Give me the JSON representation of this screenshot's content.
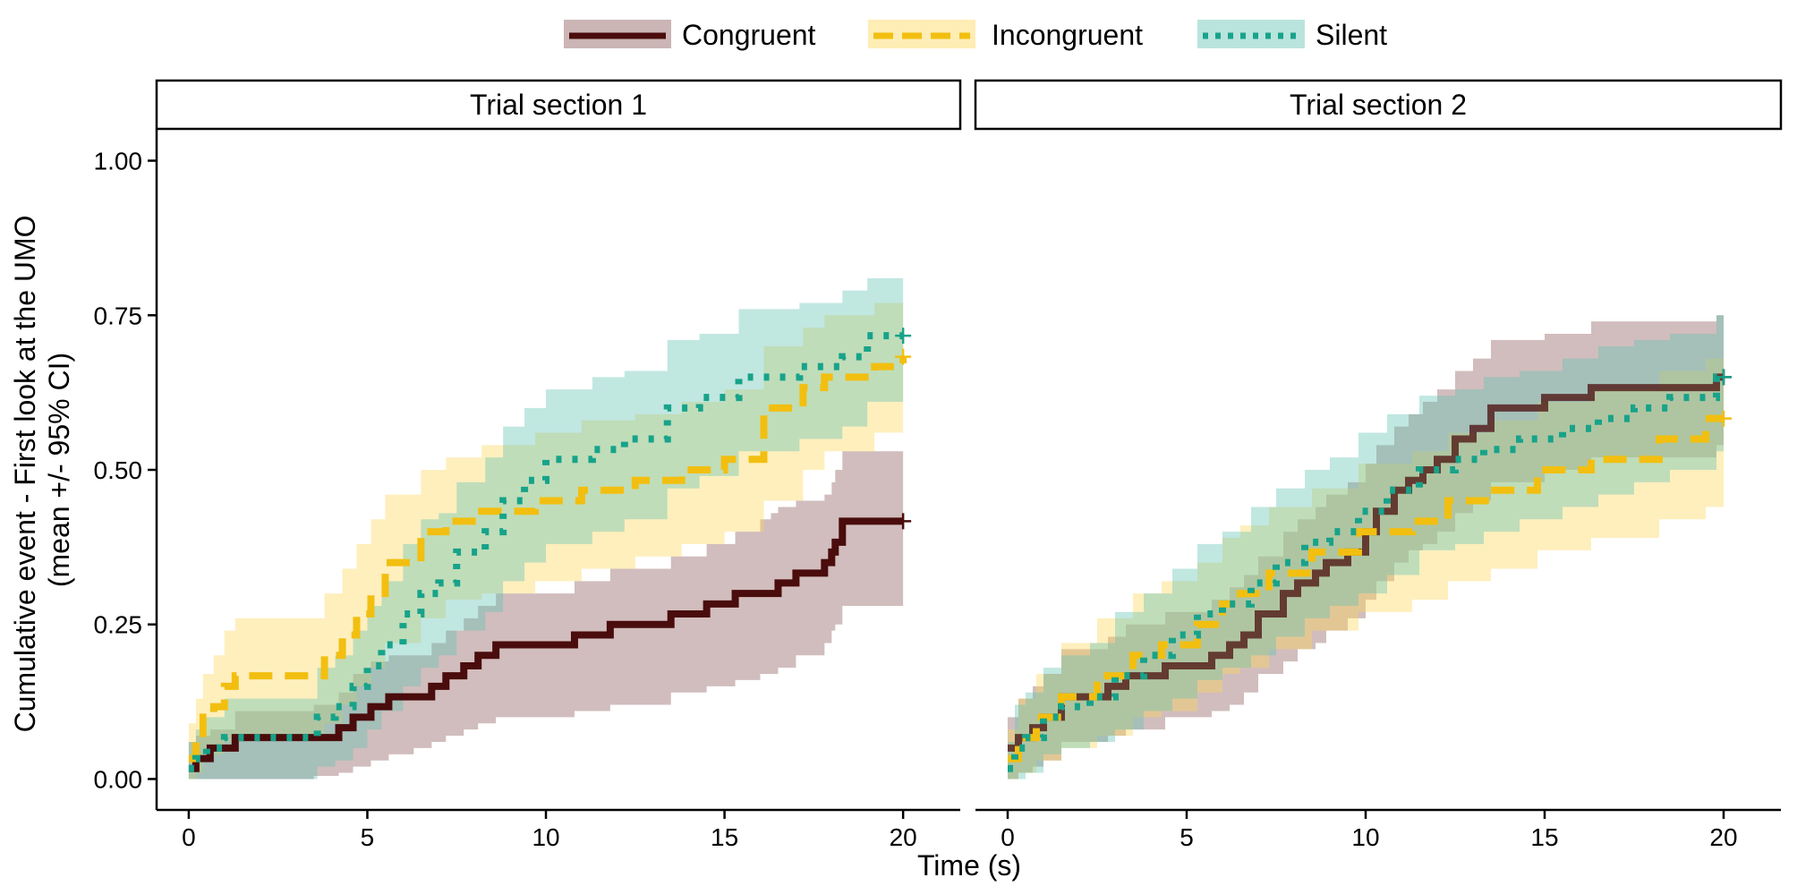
{
  "chart_data": {
    "type": "line",
    "step": true,
    "xlabel": "Time (s)",
    "ylabel_lines": [
      "Cumulative event - First look at the UMO",
      "(mean +/- 95% CI)"
    ],
    "xlim": [
      -0.9,
      21.6
    ],
    "ylim": [
      -0.05,
      1.05
    ],
    "xticks": [
      0,
      5,
      10,
      15,
      20
    ],
    "xtick_labels": [
      "0",
      "5",
      "10",
      "15",
      "20"
    ],
    "yticks": [
      0,
      0.25,
      0.5,
      0.75,
      1.0
    ],
    "ytick_labels": [
      "0.00",
      "0.25",
      "0.50",
      "0.75",
      "1.00"
    ],
    "grid": false,
    "legend_position": "top",
    "legend": [
      {
        "name": "Congruent",
        "color": "#4a0c0c",
        "fill": "#8b5a5a",
        "dash": "solid"
      },
      {
        "name": "Incongruent",
        "color": "#f2bf10",
        "fill": "#fcd65a",
        "dash": "dashed"
      },
      {
        "name": "Silent",
        "color": "#17a38a",
        "fill": "#63c4b4",
        "dash": "dotted"
      }
    ],
    "panels": [
      {
        "title": "Trial section 1",
        "series": [
          {
            "name": "Congruent",
            "x": [
              0,
              0.2,
              0.6,
              1.3,
              2.5,
              3.5,
              4.2,
              4.6,
              5.1,
              5.6,
              6.3,
              6.8,
              7.2,
              7.7,
              8.1,
              8.6,
              9.2,
              10.8,
              11.8,
              13.5,
              14.5,
              15.3,
              16.0,
              16.3,
              16.5,
              17.0,
              17.8,
              18.0,
              18.1,
              18.3,
              20.0
            ],
            "y": [
              0.017,
              0.033,
              0.05,
              0.067,
              0.067,
              0.067,
              0.083,
              0.1,
              0.117,
              0.133,
              0.133,
              0.15,
              0.167,
              0.183,
              0.2,
              0.217,
              0.217,
              0.233,
              0.25,
              0.267,
              0.283,
              0.3,
              0.3,
              0.3,
              0.317,
              0.333,
              0.35,
              0.367,
              0.383,
              0.417,
              0.417
            ],
            "lower": [
              0,
              0,
              0,
              0,
              0,
              0.005,
              0.01,
              0.02,
              0.03,
              0.04,
              0.05,
              0.06,
              0.07,
              0.08,
              0.09,
              0.1,
              0.1,
              0.11,
              0.12,
              0.14,
              0.15,
              0.16,
              0.17,
              0.17,
              0.18,
              0.2,
              0.22,
              0.24,
              0.25,
              0.28,
              0.28
            ],
            "upper": [
              0.06,
              0.07,
              0.08,
              0.11,
              0.11,
              0.12,
              0.14,
              0.17,
              0.19,
              0.2,
              0.2,
              0.22,
              0.24,
              0.26,
              0.28,
              0.3,
              0.3,
              0.32,
              0.34,
              0.36,
              0.38,
              0.4,
              0.42,
              0.43,
              0.44,
              0.45,
              0.46,
              0.48,
              0.5,
              0.53,
              0.53
            ]
          },
          {
            "name": "Incongruent",
            "x": [
              0,
              0.2,
              0.4,
              0.7,
              1.0,
              1.3,
              2.0,
              3.8,
              4.3,
              4.7,
              5.1,
              5.5,
              6.5,
              7.2,
              8.2,
              9.7,
              11.0,
              12.5,
              13.8,
              15.0,
              16.1,
              17.2,
              17.8,
              19.2,
              20.0
            ],
            "y": [
              0.033,
              0.067,
              0.1,
              0.117,
              0.15,
              0.167,
              0.167,
              0.2,
              0.233,
              0.267,
              0.3,
              0.35,
              0.4,
              0.417,
              0.433,
              0.45,
              0.467,
              0.483,
              0.5,
              0.517,
              0.6,
              0.633,
              0.65,
              0.667,
              0.683
            ],
            "lower": [
              0,
              0.01,
              0.03,
              0.04,
              0.06,
              0.07,
              0.07,
              0.09,
              0.12,
              0.15,
              0.18,
              0.22,
              0.26,
              0.29,
              0.3,
              0.32,
              0.34,
              0.36,
              0.38,
              0.4,
              0.45,
              0.5,
              0.53,
              0.56,
              0.58
            ],
            "upper": [
              0.09,
              0.13,
              0.17,
              0.2,
              0.24,
              0.26,
              0.26,
              0.3,
              0.34,
              0.38,
              0.42,
              0.46,
              0.5,
              0.52,
              0.54,
              0.56,
              0.58,
              0.59,
              0.61,
              0.63,
              0.7,
              0.73,
              0.75,
              0.77,
              0.78
            ]
          },
          {
            "name": "Silent",
            "x": [
              0,
              0.2,
              0.5,
              1.0,
              1.5,
              3.0,
              3.6,
              4.1,
              4.6,
              5.0,
              5.4,
              6.0,
              6.5,
              7.0,
              7.5,
              8.3,
              8.8,
              9.4,
              10.0,
              11.3,
              12.2,
              13.4,
              14.3,
              15.4,
              16.1,
              17.1,
              18.3,
              19.0,
              20.0
            ],
            "y": [
              0.017,
              0.033,
              0.05,
              0.067,
              0.067,
              0.067,
              0.1,
              0.117,
              0.15,
              0.183,
              0.217,
              0.267,
              0.3,
              0.317,
              0.367,
              0.4,
              0.45,
              0.483,
              0.517,
              0.533,
              0.55,
              0.6,
              0.617,
              0.65,
              0.65,
              0.667,
              0.683,
              0.717,
              0.717
            ],
            "lower": [
              0,
              0,
              0,
              0,
              0,
              0,
              0.02,
              0.03,
              0.05,
              0.08,
              0.11,
              0.15,
              0.18,
              0.2,
              0.24,
              0.27,
              0.32,
              0.35,
              0.38,
              0.4,
              0.42,
              0.47,
              0.49,
              0.53,
              0.53,
              0.55,
              0.57,
              0.61,
              0.61
            ],
            "upper": [
              0.06,
              0.08,
              0.1,
              0.13,
              0.13,
              0.13,
              0.18,
              0.2,
              0.24,
              0.28,
              0.32,
              0.38,
              0.42,
              0.43,
              0.48,
              0.52,
              0.57,
              0.6,
              0.63,
              0.65,
              0.66,
              0.71,
              0.72,
              0.76,
              0.76,
              0.77,
              0.79,
              0.81,
              0.81
            ]
          }
        ]
      },
      {
        "title": "Trial section 2",
        "series": [
          {
            "name": "Congruent",
            "x": [
              0,
              0.3,
              0.7,
              1.0,
              1.5,
              2.8,
              3.3,
              3.8,
              4.4,
              5.7,
              6.2,
              6.6,
              7.0,
              7.7,
              8.1,
              8.6,
              8.9,
              9.2,
              9.5,
              9.8,
              10.0,
              10.3,
              10.8,
              11.2,
              11.6,
              12.0,
              12.5,
              13.0,
              13.5,
              14.0,
              15.0,
              16.3,
              18.3,
              19.8,
              20.0
            ],
            "y": [
              0.05,
              0.067,
              0.083,
              0.1,
              0.133,
              0.15,
              0.167,
              0.167,
              0.183,
              0.2,
              0.217,
              0.233,
              0.267,
              0.3,
              0.317,
              0.333,
              0.35,
              0.35,
              0.367,
              0.367,
              0.4,
              0.433,
              0.467,
              0.483,
              0.5,
              0.517,
              0.55,
              0.567,
              0.6,
              0.6,
              0.617,
              0.633,
              0.633,
              0.65,
              0.65
            ],
            "lower": [
              0,
              0.01,
              0.02,
              0.03,
              0.06,
              0.07,
              0.08,
              0.08,
              0.1,
              0.11,
              0.12,
              0.14,
              0.17,
              0.19,
              0.21,
              0.22,
              0.24,
              0.24,
              0.26,
              0.26,
              0.29,
              0.32,
              0.35,
              0.37,
              0.38,
              0.4,
              0.43,
              0.45,
              0.48,
              0.48,
              0.5,
              0.52,
              0.52,
              0.54,
              0.54
            ],
            "upper": [
              0.1,
              0.13,
              0.15,
              0.17,
              0.21,
              0.23,
              0.25,
              0.25,
              0.27,
              0.29,
              0.31,
              0.33,
              0.36,
              0.4,
              0.42,
              0.44,
              0.46,
              0.46,
              0.48,
              0.48,
              0.51,
              0.54,
              0.57,
              0.59,
              0.61,
              0.63,
              0.66,
              0.68,
              0.71,
              0.71,
              0.72,
              0.74,
              0.74,
              0.75,
              0.75
            ]
          },
          {
            "name": "Incongruent",
            "x": [
              0,
              0.3,
              0.8,
              1.5,
              2.5,
              3.5,
              4.3,
              5.3,
              6.0,
              6.5,
              7.3,
              8.5,
              9.8,
              11.3,
              12.3,
              13.5,
              14.8,
              16.3,
              18.2,
              19.5,
              20.0
            ],
            "y": [
              0.033,
              0.067,
              0.1,
              0.133,
              0.167,
              0.2,
              0.217,
              0.25,
              0.283,
              0.3,
              0.333,
              0.367,
              0.4,
              0.417,
              0.45,
              0.467,
              0.5,
              0.517,
              0.55,
              0.583,
              0.583
            ],
            "lower": [
              0,
              0.01,
              0.03,
              0.05,
              0.07,
              0.1,
              0.11,
              0.14,
              0.17,
              0.18,
              0.21,
              0.24,
              0.27,
              0.29,
              0.32,
              0.34,
              0.37,
              0.39,
              0.42,
              0.44,
              0.44
            ],
            "upper": [
              0.08,
              0.13,
              0.17,
              0.22,
              0.26,
              0.3,
              0.32,
              0.35,
              0.39,
              0.41,
              0.44,
              0.47,
              0.51,
              0.53,
              0.56,
              0.58,
              0.61,
              0.63,
              0.66,
              0.68,
              0.68
            ]
          },
          {
            "name": "Silent",
            "x": [
              0,
              0.2,
              0.5,
              1.0,
              1.5,
              2.3,
              3.0,
              3.8,
              4.6,
              5.3,
              6.0,
              6.8,
              7.5,
              8.3,
              9.0,
              9.8,
              10.6,
              11.5,
              12.5,
              13.3,
              14.3,
              15.5,
              16.5,
              17.5,
              18.5,
              19.8,
              20.0
            ],
            "y": [
              0.017,
              0.05,
              0.067,
              0.1,
              0.117,
              0.133,
              0.167,
              0.2,
              0.233,
              0.267,
              0.283,
              0.317,
              0.35,
              0.383,
              0.4,
              0.433,
              0.467,
              0.5,
              0.517,
              0.533,
              0.55,
              0.567,
              0.583,
              0.6,
              0.617,
              0.65,
              0.65
            ],
            "lower": [
              0,
              0,
              0.01,
              0.04,
              0.05,
              0.06,
              0.08,
              0.11,
              0.13,
              0.16,
              0.18,
              0.2,
              0.23,
              0.26,
              0.28,
              0.3,
              0.33,
              0.37,
              0.38,
              0.4,
              0.42,
              0.44,
              0.46,
              0.48,
              0.5,
              0.53,
              0.53
            ],
            "upper": [
              0.06,
              0.12,
              0.14,
              0.18,
              0.2,
              0.22,
              0.27,
              0.3,
              0.34,
              0.38,
              0.4,
              0.44,
              0.47,
              0.5,
              0.52,
              0.56,
              0.59,
              0.62,
              0.63,
              0.65,
              0.66,
              0.68,
              0.7,
              0.71,
              0.72,
              0.75,
              0.75
            ]
          }
        ]
      }
    ]
  }
}
